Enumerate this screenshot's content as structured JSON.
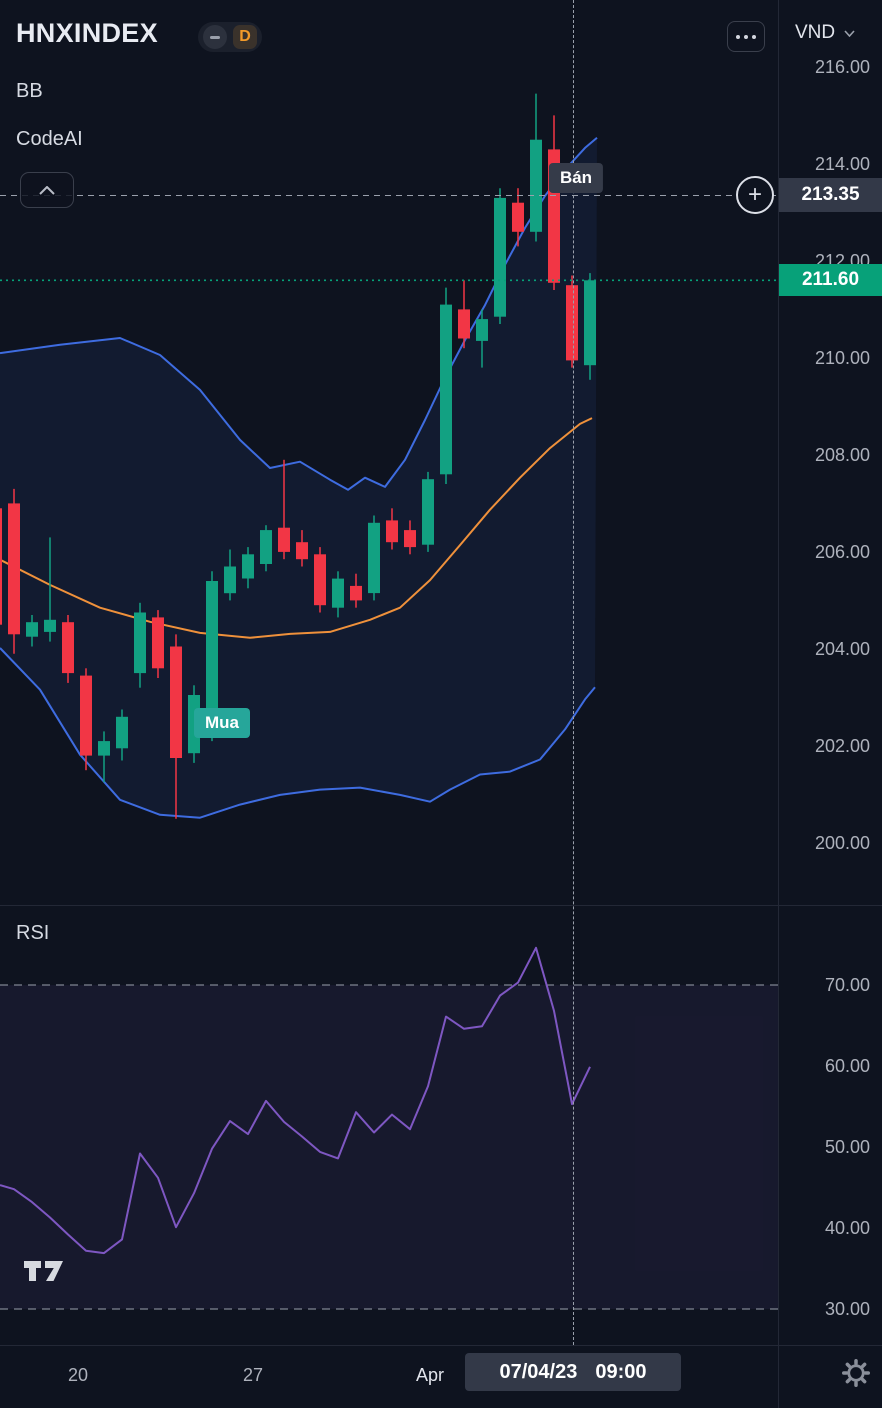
{
  "header": {
    "symbol": "HNXINDEX",
    "interval": "D",
    "currency": "VND",
    "indicator_bb": "BB",
    "indicator_codeai": "CodeAI",
    "indicator_rsi": "RSI"
  },
  "icons": {
    "plus": "+"
  },
  "colors": {
    "background": "#0e131f",
    "up": "#12a182",
    "down": "#f23645",
    "bb_band": "#3e6ce0",
    "bb_mid": "#ef913b",
    "rsi_line": "#7e57c2",
    "crosshair": "#9aa0ac",
    "crosshair_badge": "#333948",
    "last_price_badge": "#07a179",
    "signal_buy_bg": "#26a69a",
    "signal_sell_bg": "#353b49",
    "interval_accent": "#f29a29",
    "axis_text": "#aeb2bc"
  },
  "price_axis": {
    "crosshair_label": "213.35",
    "last_label": "211.60",
    "ticks": [
      {
        "label": "216.00",
        "price": 216
      },
      {
        "label": "214.00",
        "price": 214
      },
      {
        "label": "212.00",
        "price": 212
      },
      {
        "label": "210.00",
        "price": 210
      },
      {
        "label": "208.00",
        "price": 208
      },
      {
        "label": "206.00",
        "price": 206
      },
      {
        "label": "204.00",
        "price": 204
      },
      {
        "label": "202.00",
        "price": 202
      },
      {
        "label": "200.00",
        "price": 200
      }
    ]
  },
  "rsi_axis": {
    "ticks": [
      {
        "label": "70.00",
        "value": 70
      },
      {
        "label": "60.00",
        "value": 60
      },
      {
        "label": "50.00",
        "value": 50
      },
      {
        "label": "40.00",
        "value": 40
      },
      {
        "label": "30.00",
        "value": 30
      }
    ]
  },
  "time_axis": {
    "ticks": [
      {
        "label": "20",
        "x": 78
      },
      {
        "label": "27",
        "x": 253
      },
      {
        "label": "Apr",
        "x": 430,
        "major": true
      }
    ],
    "crosshair_date": "07/04/23",
    "crosshair_time": "09:00",
    "crosshair_x": 573
  },
  "chart_data": [
    {
      "type": "candlestick",
      "title": "HNXINDEX, D",
      "ylabel": "VND",
      "ylim": [
        198.72,
        217.38
      ],
      "price_ticks": [
        216,
        214,
        212,
        210,
        208,
        206,
        204,
        202,
        200
      ],
      "time_ticks": [
        "20",
        "27",
        "Apr"
      ],
      "grid": false,
      "last_price": 211.6,
      "crosshair": {
        "x": 573,
        "price": 213.35,
        "date": "07/04/23",
        "time": "09:00"
      },
      "candles_format": [
        "x_px",
        "open",
        "high",
        "low",
        "close"
      ],
      "candles": [
        [
          -4,
          206.9,
          207.1,
          204.1,
          204.5
        ],
        [
          14,
          207.0,
          207.3,
          203.9,
          204.3
        ],
        [
          32,
          204.25,
          204.7,
          204.05,
          204.55
        ],
        [
          50,
          204.35,
          206.3,
          204.15,
          204.6
        ],
        [
          68,
          204.55,
          204.7,
          203.3,
          203.5
        ],
        [
          86,
          203.45,
          203.6,
          201.5,
          201.8
        ],
        [
          104,
          201.8,
          202.3,
          201.25,
          202.1
        ],
        [
          122,
          201.95,
          202.75,
          201.7,
          202.6
        ],
        [
          140,
          203.5,
          204.95,
          203.2,
          204.75
        ],
        [
          158,
          204.65,
          204.8,
          203.4,
          203.6
        ],
        [
          176,
          204.05,
          204.3,
          200.5,
          201.75
        ],
        [
          194,
          201.85,
          203.25,
          201.65,
          203.05
        ],
        [
          212,
          202.3,
          205.6,
          202.1,
          205.4
        ],
        [
          230,
          205.15,
          206.05,
          205.0,
          205.7
        ],
        [
          248,
          205.45,
          206.1,
          205.25,
          205.95
        ],
        [
          266,
          205.75,
          206.55,
          205.6,
          206.45
        ],
        [
          284,
          206.5,
          207.9,
          205.85,
          206.0
        ],
        [
          302,
          206.2,
          206.45,
          205.7,
          205.85
        ],
        [
          320,
          205.95,
          206.1,
          204.75,
          204.9
        ],
        [
          338,
          204.85,
          205.6,
          204.65,
          205.45
        ],
        [
          356,
          205.3,
          205.55,
          204.85,
          205.0
        ],
        [
          374,
          205.15,
          206.75,
          205.0,
          206.6
        ],
        [
          392,
          206.65,
          206.9,
          206.05,
          206.2
        ],
        [
          410,
          206.45,
          206.65,
          205.95,
          206.1
        ],
        [
          428,
          206.15,
          207.65,
          206.0,
          207.5
        ],
        [
          446,
          207.6,
          211.45,
          207.4,
          211.1
        ],
        [
          464,
          211.0,
          211.6,
          210.2,
          210.4
        ],
        [
          482,
          210.35,
          211.0,
          209.8,
          210.8
        ],
        [
          500,
          210.85,
          213.5,
          210.7,
          213.3
        ],
        [
          518,
          213.2,
          213.5,
          212.3,
          212.6
        ],
        [
          536,
          212.6,
          215.45,
          212.4,
          214.5
        ],
        [
          554,
          214.3,
          215.0,
          211.4,
          211.55
        ],
        [
          572,
          211.5,
          211.7,
          209.8,
          209.95
        ],
        [
          590,
          209.85,
          211.75,
          209.55,
          211.6
        ]
      ],
      "bollinger": {
        "upper": [
          [
            0,
            210.1
          ],
          [
            60,
            210.27
          ],
          [
            120,
            210.41
          ],
          [
            160,
            210.06
          ],
          [
            200,
            209.34
          ],
          [
            240,
            208.31
          ],
          [
            270,
            207.73
          ],
          [
            300,
            207.86
          ],
          [
            330,
            207.49
          ],
          [
            348,
            207.28
          ],
          [
            365,
            207.53
          ],
          [
            385,
            207.34
          ],
          [
            405,
            207.9
          ],
          [
            425,
            208.72
          ],
          [
            445,
            209.59
          ],
          [
            465,
            210.37
          ],
          [
            485,
            211.09
          ],
          [
            505,
            211.92
          ],
          [
            525,
            212.68
          ],
          [
            545,
            213.34
          ],
          [
            565,
            213.88
          ],
          [
            585,
            214.33
          ],
          [
            597,
            214.54
          ]
        ],
        "middle": [
          [
            0,
            205.84
          ],
          [
            50,
            205.32
          ],
          [
            100,
            204.85
          ],
          [
            150,
            204.56
          ],
          [
            200,
            204.33
          ],
          [
            250,
            204.23
          ],
          [
            290,
            204.31
          ],
          [
            330,
            204.35
          ],
          [
            370,
            204.6
          ],
          [
            400,
            204.85
          ],
          [
            430,
            205.42
          ],
          [
            460,
            206.14
          ],
          [
            490,
            206.87
          ],
          [
            520,
            207.53
          ],
          [
            550,
            208.14
          ],
          [
            580,
            208.64
          ],
          [
            592,
            208.76
          ]
        ],
        "lower": [
          [
            0,
            204.02
          ],
          [
            40,
            203.16
          ],
          [
            80,
            201.82
          ],
          [
            120,
            200.89
          ],
          [
            160,
            200.58
          ],
          [
            200,
            200.52
          ],
          [
            240,
            200.79
          ],
          [
            280,
            200.99
          ],
          [
            320,
            201.1
          ],
          [
            360,
            201.14
          ],
          [
            400,
            200.99
          ],
          [
            430,
            200.85
          ],
          [
            450,
            201.1
          ],
          [
            480,
            201.41
          ],
          [
            510,
            201.47
          ],
          [
            540,
            201.72
          ],
          [
            565,
            202.34
          ],
          [
            585,
            202.96
          ],
          [
            595,
            203.21
          ]
        ]
      },
      "signals": [
        {
          "type": "buy",
          "label": "Mua",
          "x": 222,
          "price": 202.48
        },
        {
          "type": "sell",
          "label": "Bán",
          "x": 576,
          "price": 213.72
        }
      ]
    },
    {
      "type": "line",
      "title": "RSI",
      "ylim": [
        25.56,
        79.88
      ],
      "levels": [
        70,
        30
      ],
      "rsi_ticks": [
        70,
        60,
        50,
        40,
        30
      ],
      "points": [
        [
          0,
          45.3
        ],
        [
          14,
          44.8
        ],
        [
          32,
          43.2
        ],
        [
          50,
          41.3
        ],
        [
          68,
          39.2
        ],
        [
          86,
          37.2
        ],
        [
          104,
          36.9
        ],
        [
          122,
          38.6
        ],
        [
          140,
          49.2
        ],
        [
          158,
          46.2
        ],
        [
          176,
          40.1
        ],
        [
          194,
          44.3
        ],
        [
          212,
          49.8
        ],
        [
          230,
          53.2
        ],
        [
          248,
          51.6
        ],
        [
          266,
          55.7
        ],
        [
          284,
          53.1
        ],
        [
          302,
          51.3
        ],
        [
          320,
          49.4
        ],
        [
          338,
          48.6
        ],
        [
          356,
          54.3
        ],
        [
          374,
          51.8
        ],
        [
          392,
          54.0
        ],
        [
          410,
          52.2
        ],
        [
          428,
          57.5
        ],
        [
          446,
          66.1
        ],
        [
          464,
          64.6
        ],
        [
          482,
          64.9
        ],
        [
          500,
          68.7
        ],
        [
          518,
          70.3
        ],
        [
          536,
          74.6
        ],
        [
          554,
          66.8
        ],
        [
          572,
          55.3
        ],
        [
          590,
          59.9
        ]
      ]
    }
  ]
}
